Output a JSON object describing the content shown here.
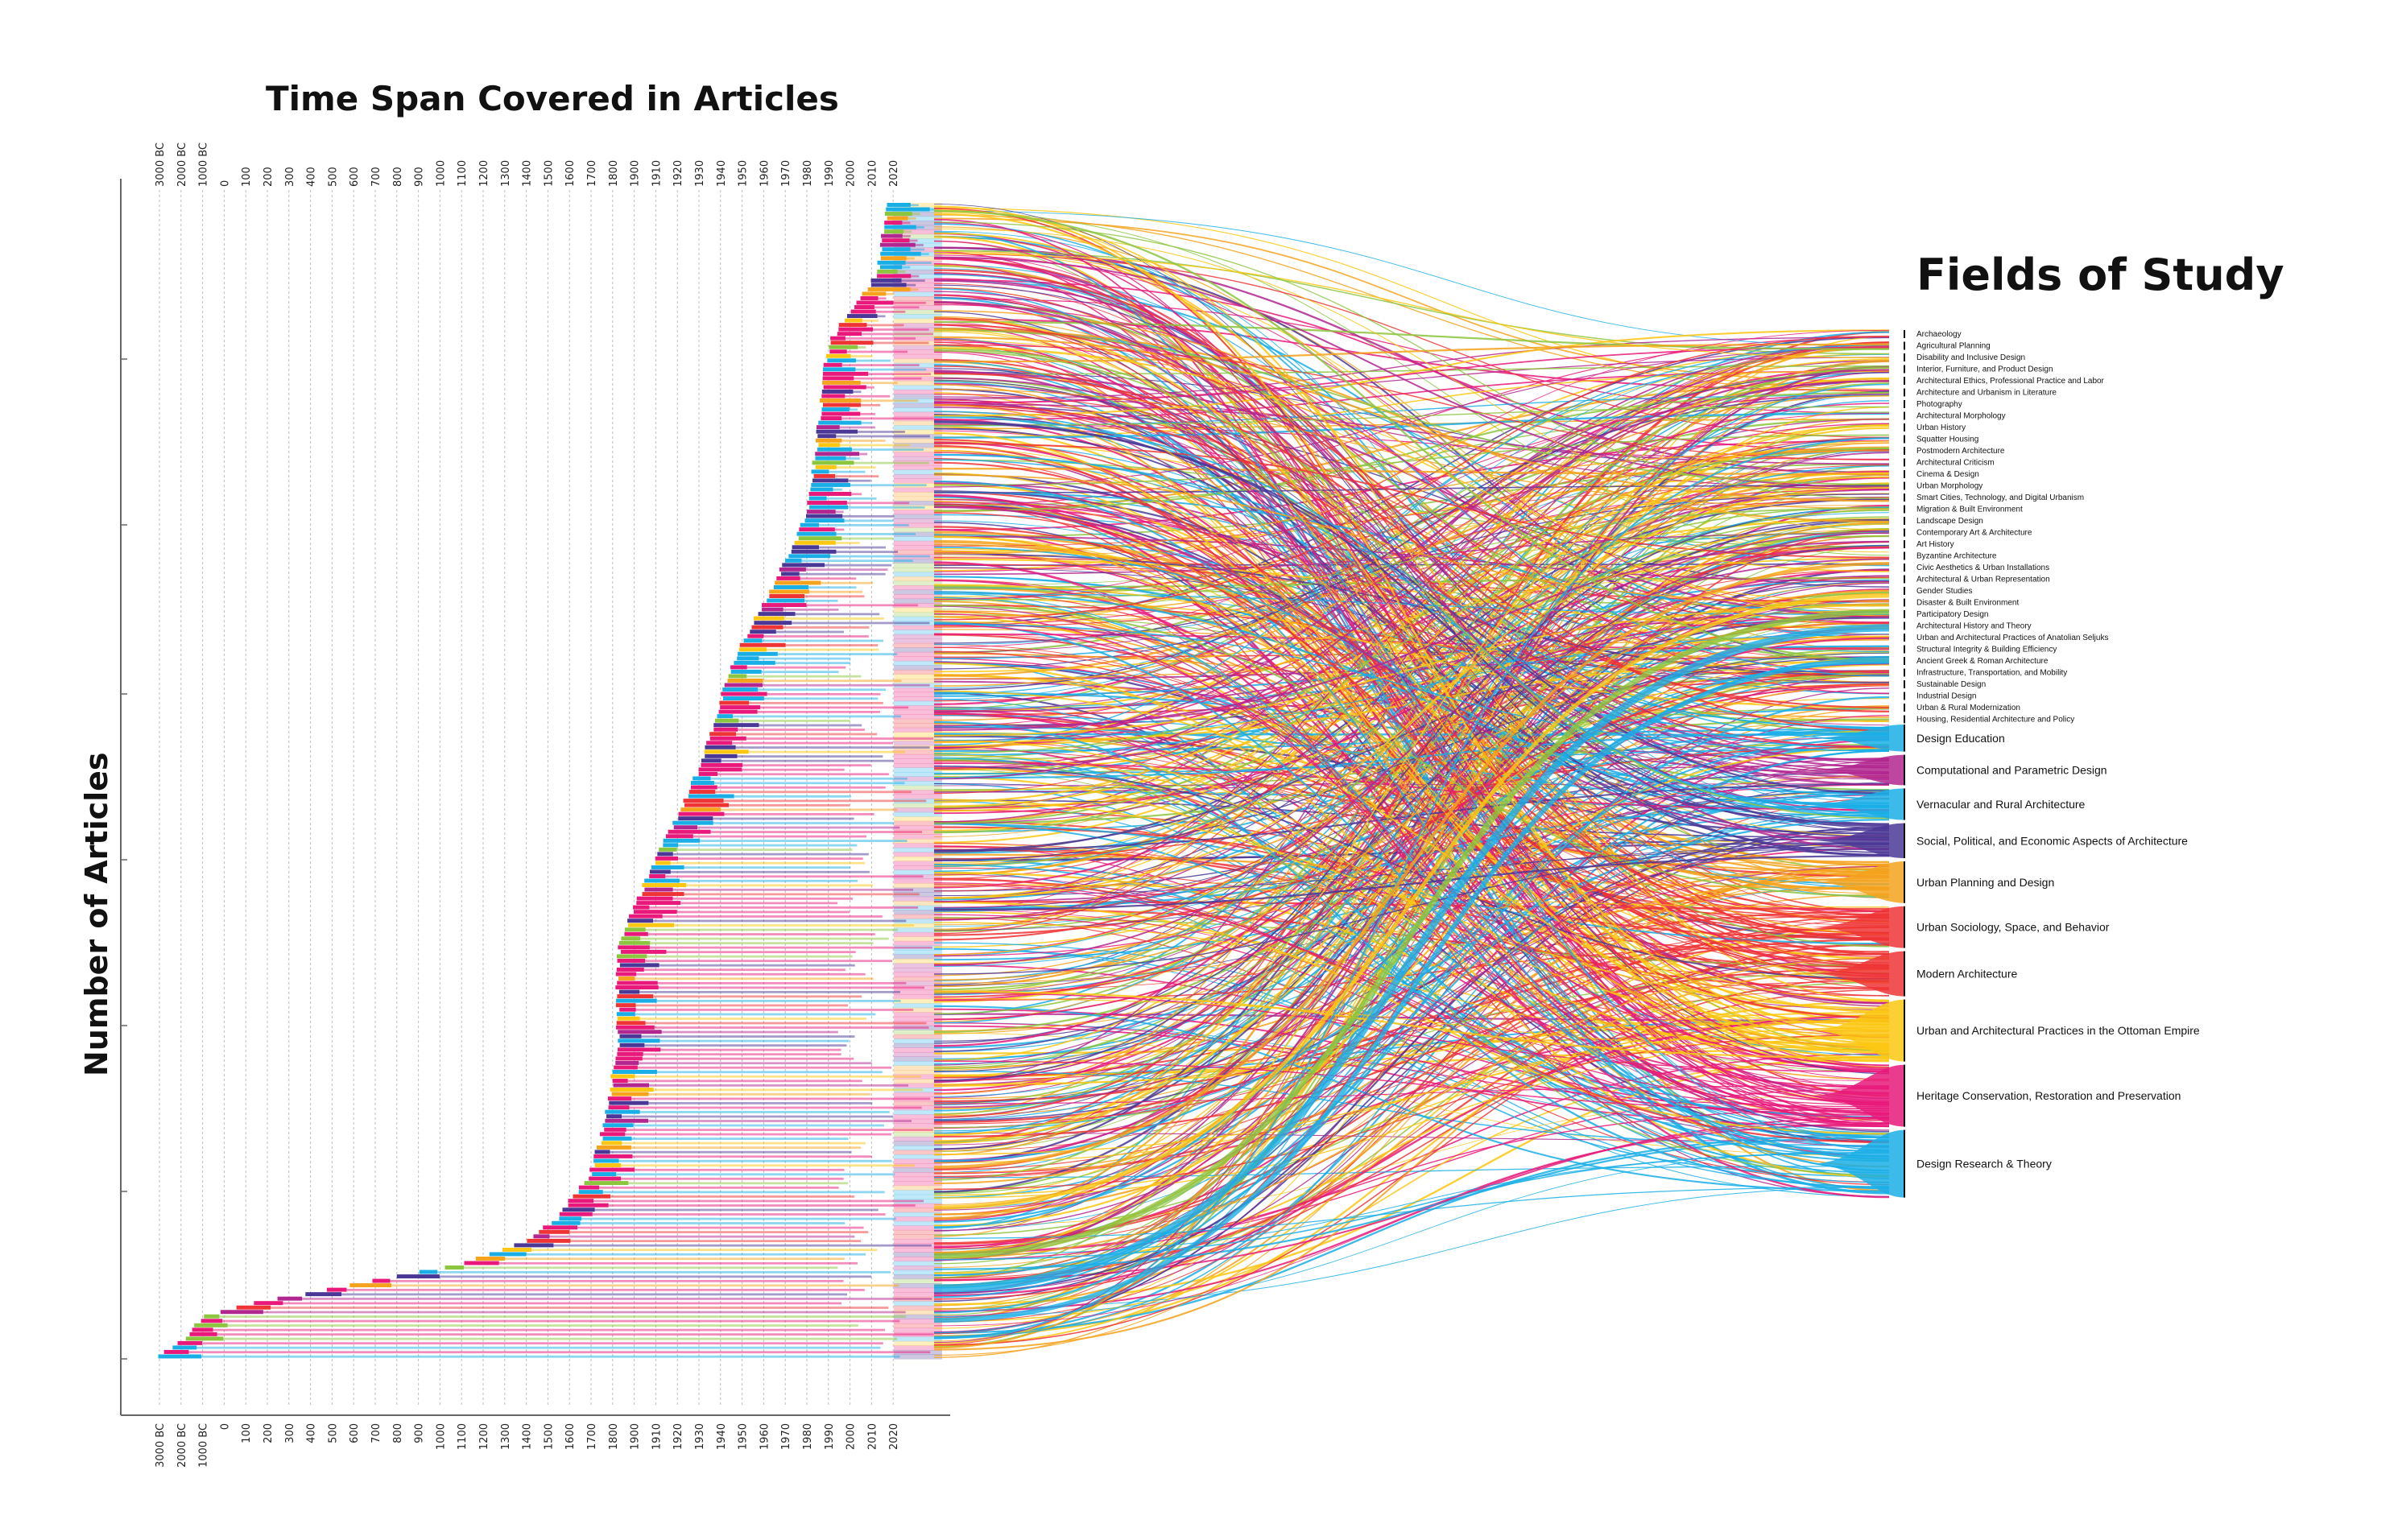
{
  "chart_data": {
    "type": "sankey",
    "title": "Time Span Covered in Articles",
    "ylabel": "Number of Articles",
    "right_title": "Fields of Study",
    "time_ticks": [
      "3000 BC",
      "2000 BC",
      "1000 BC",
      "0",
      "100",
      "200",
      "300",
      "400",
      "500",
      "600",
      "700",
      "800",
      "900",
      "1000",
      "1100",
      "1200",
      "1300",
      "1400",
      "1500",
      "1600",
      "1700",
      "1800",
      "1900",
      "1910",
      "1920",
      "1930",
      "1940",
      "1950",
      "1960",
      "1970",
      "1980",
      "1990",
      "2000",
      "2010",
      "2020"
    ],
    "fields_small": [
      "Archaeology",
      "Agricultural Planning",
      "Disability and Inclusive Design",
      "Interior, Furniture, and Product Design",
      "Architectural Ethics, Professional Practice and Labor",
      "Architecture and Urbanism in Literature",
      "Photography",
      "Architectural Morphology",
      "Urban History",
      "Squatter Housing",
      "Postmodern Architecture",
      "Architectural Criticism",
      "Cinema & Design",
      "Urban Morphology",
      "Smart Cities, Technology, and Digital Urbanism",
      "Migration & Built Environment",
      "Landscape Design",
      "Contemporary Art & Architecture",
      "Art History",
      "Byzantine Architecture",
      "Civic Aesthetics & Urban Installations",
      "Architectural & Urban Representation",
      "Gender Studies",
      "Disaster & Built Environment",
      "Participatory Design",
      "Architectural History and Theory",
      "Urban and Architectural Practices of Anatolian Seljuks",
      "Structural Integrity & Building Efficiency",
      "Ancient Greek & Roman Architecture",
      "Infrastructure, Transportation, and Mobility",
      "Sustainable Design",
      "Industrial Design",
      "Urban & Rural Modernization",
      "Housing, Residential Architecture and Policy"
    ],
    "fields_large": [
      {
        "name": "Design Education",
        "weight": 1.2
      },
      {
        "name": "Computational and Parametric Design",
        "weight": 1.35
      },
      {
        "name": "Vernacular and Rural Architecture",
        "weight": 1.4
      },
      {
        "name": "Social, Political, and Economic Aspects of Architecture",
        "weight": 1.55
      },
      {
        "name": "Urban Planning and Design",
        "weight": 1.85
      },
      {
        "name": "Urban Sociology, Space, and Behavior",
        "weight": 1.85
      },
      {
        "name": "Modern Architecture",
        "weight": 2.0
      },
      {
        "name": "Urban and Architectural Practices in the Ottoman Empire",
        "weight": 2.75
      },
      {
        "name": "Heritage Conservation, Restoration and Preservation",
        "weight": 2.75
      },
      {
        "name": "Design Research & Theory",
        "weight": 3.0
      }
    ],
    "colors": {
      "pink": "#e8197a",
      "cyan": "#1aaee6",
      "purple": "#4b3896",
      "orange": "#f5a21c",
      "red": "#ee3435",
      "yellow": "#fbc712",
      "magenta": "#b2268f",
      "green": "#8cc63f",
      "grid": "#bdbdbd"
    }
  }
}
